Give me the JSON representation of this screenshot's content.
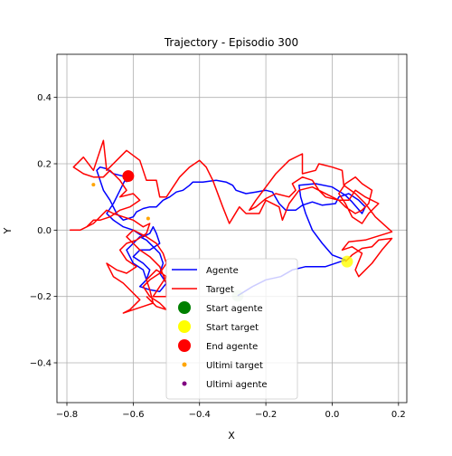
{
  "chart_data": {
    "type": "line",
    "title": "Trajectory - Episodio 300",
    "xlabel": "X",
    "ylabel": "Y",
    "xlim": [
      -0.83,
      0.225
    ],
    "ylim": [
      -0.52,
      0.53
    ],
    "xticks": [
      -0.8,
      -0.6,
      -0.4,
      -0.2,
      0.0,
      0.2
    ],
    "xtick_labels": [
      "−0.8",
      "−0.6",
      "−0.4",
      "−0.2",
      "0.0",
      "0.2"
    ],
    "yticks": [
      -0.4,
      -0.2,
      0.0,
      0.2,
      0.4
    ],
    "ytick_labels": [
      "−0.4",
      "−0.2",
      "0.0",
      "0.2",
      "0.4"
    ],
    "grid": true,
    "legend_position": "lower-center",
    "series": [
      {
        "name": "Agente",
        "color": "#0000ff",
        "points": [
          [
            -0.285,
            -0.198
          ],
          [
            -0.24,
            -0.17
          ],
          [
            -0.2,
            -0.15
          ],
          [
            -0.155,
            -0.14
          ],
          [
            -0.12,
            -0.12
          ],
          [
            -0.08,
            -0.11
          ],
          [
            -0.02,
            -0.11
          ],
          [
            0.04,
            -0.09
          ],
          [
            0.0,
            -0.075
          ],
          [
            -0.03,
            -0.04
          ],
          [
            -0.06,
            0.0
          ],
          [
            -0.08,
            0.05
          ],
          [
            -0.095,
            0.1
          ],
          [
            -0.1,
            0.135
          ],
          [
            -0.05,
            0.14
          ],
          [
            0.0,
            0.13
          ],
          [
            0.04,
            0.105
          ],
          [
            0.06,
            0.085
          ],
          [
            0.09,
            0.05
          ],
          [
            0.1,
            0.07
          ],
          [
            0.08,
            0.09
          ],
          [
            0.05,
            0.11
          ],
          [
            0.02,
            0.1
          ],
          [
            0.01,
            0.08
          ],
          [
            -0.03,
            0.075
          ],
          [
            -0.06,
            0.085
          ],
          [
            -0.09,
            0.075
          ],
          [
            -0.11,
            0.06
          ],
          [
            -0.14,
            0.06
          ],
          [
            -0.16,
            0.08
          ],
          [
            -0.18,
            0.115
          ],
          [
            -0.2,
            0.12
          ],
          [
            -0.23,
            0.115
          ],
          [
            -0.26,
            0.11
          ],
          [
            -0.29,
            0.12
          ],
          [
            -0.3,
            0.135
          ],
          [
            -0.32,
            0.145
          ],
          [
            -0.35,
            0.15
          ],
          [
            -0.39,
            0.145
          ],
          [
            -0.42,
            0.145
          ],
          [
            -0.43,
            0.135
          ],
          [
            -0.45,
            0.12
          ],
          [
            -0.47,
            0.115
          ],
          [
            -0.49,
            0.1
          ],
          [
            -0.51,
            0.09
          ],
          [
            -0.53,
            0.07
          ],
          [
            -0.55,
            0.07
          ],
          [
            -0.57,
            0.065
          ],
          [
            -0.59,
            0.055
          ],
          [
            -0.6,
            0.04
          ],
          [
            -0.63,
            0.03
          ],
          [
            -0.65,
            0.05
          ],
          [
            -0.67,
            0.09
          ],
          [
            -0.69,
            0.12
          ],
          [
            -0.7,
            0.15
          ],
          [
            -0.71,
            0.18
          ],
          [
            -0.7,
            0.19
          ],
          [
            -0.68,
            0.185
          ],
          [
            -0.66,
            0.17
          ],
          [
            -0.64,
            0.165
          ],
          [
            -0.62,
            0.16
          ],
          [
            -0.64,
            0.12
          ],
          [
            -0.66,
            0.08
          ],
          [
            -0.68,
            0.05
          ],
          [
            -0.66,
            0.03
          ],
          [
            -0.63,
            0.01
          ],
          [
            -0.6,
            0.0
          ],
          [
            -0.57,
            -0.02
          ],
          [
            -0.55,
            -0.01
          ],
          [
            -0.54,
            0.01
          ],
          [
            -0.53,
            -0.01
          ],
          [
            -0.52,
            -0.04
          ],
          [
            -0.55,
            -0.06
          ],
          [
            -0.58,
            -0.06
          ],
          [
            -0.6,
            -0.08
          ],
          [
            -0.57,
            -0.1
          ],
          [
            -0.55,
            -0.12
          ],
          [
            -0.56,
            -0.15
          ],
          [
            -0.58,
            -0.17
          ],
          [
            -0.55,
            -0.18
          ],
          [
            -0.52,
            -0.185
          ],
          [
            -0.5,
            -0.16
          ],
          [
            -0.52,
            -0.13
          ],
          [
            -0.51,
            -0.1
          ],
          [
            -0.52,
            -0.07
          ],
          [
            -0.54,
            -0.05
          ],
          [
            -0.56,
            -0.03
          ],
          [
            -0.58,
            -0.02
          ],
          [
            -0.6,
            -0.04
          ],
          [
            -0.62,
            -0.06
          ],
          [
            -0.6,
            -0.1
          ],
          [
            -0.57,
            -0.12
          ],
          [
            -0.56,
            -0.15
          ]
        ]
      },
      {
        "name": "Target",
        "color": "#ff0000",
        "points": [
          [
            0.04,
            -0.095
          ],
          [
            0.06,
            -0.075
          ],
          [
            0.09,
            -0.055
          ],
          [
            0.12,
            -0.05
          ],
          [
            0.14,
            -0.03
          ],
          [
            0.18,
            -0.025
          ],
          [
            0.15,
            -0.06
          ],
          [
            0.12,
            -0.1
          ],
          [
            0.08,
            -0.14
          ],
          [
            0.07,
            -0.12
          ],
          [
            0.09,
            -0.07
          ],
          [
            0.06,
            -0.05
          ],
          [
            0.03,
            -0.06
          ],
          [
            0.05,
            -0.035
          ],
          [
            0.1,
            -0.03
          ],
          [
            0.18,
            -0.005
          ],
          [
            0.13,
            0.04
          ],
          [
            0.1,
            0.08
          ],
          [
            0.07,
            0.11
          ],
          [
            0.035,
            0.135
          ],
          [
            0.03,
            0.18
          ],
          [
            0.0,
            0.19
          ],
          [
            -0.04,
            0.2
          ],
          [
            -0.05,
            0.18
          ],
          [
            -0.09,
            0.17
          ],
          [
            -0.09,
            0.23
          ],
          [
            -0.13,
            0.21
          ],
          [
            -0.17,
            0.17
          ],
          [
            -0.2,
            0.13
          ],
          [
            -0.23,
            0.09
          ],
          [
            -0.25,
            0.06
          ],
          [
            -0.23,
            0.07
          ],
          [
            -0.2,
            0.095
          ],
          [
            -0.17,
            0.11
          ],
          [
            -0.13,
            0.1
          ],
          [
            -0.11,
            0.12
          ],
          [
            -0.12,
            0.14
          ],
          [
            -0.09,
            0.16
          ],
          [
            -0.06,
            0.15
          ],
          [
            -0.04,
            0.12
          ],
          [
            -0.02,
            0.1
          ],
          [
            0.02,
            0.09
          ],
          [
            0.05,
            0.09
          ],
          [
            0.07,
            0.12
          ],
          [
            0.1,
            0.1
          ],
          [
            0.14,
            0.08
          ],
          [
            0.11,
            0.05
          ],
          [
            0.09,
            0.02
          ],
          [
            0.06,
            0.04
          ],
          [
            0.04,
            0.08
          ],
          [
            0.02,
            0.11
          ],
          [
            0.04,
            0.14
          ],
          [
            0.07,
            0.16
          ],
          [
            0.09,
            0.14
          ],
          [
            0.12,
            0.12
          ],
          [
            0.11,
            0.08
          ],
          [
            0.09,
            0.06
          ],
          [
            0.07,
            0.05
          ],
          [
            0.04,
            0.07
          ],
          [
            0.02,
            0.09
          ],
          [
            0.0,
            0.1
          ],
          [
            -0.06,
            0.13
          ],
          [
            -0.1,
            0.12
          ],
          [
            -0.13,
            0.08
          ],
          [
            -0.15,
            0.03
          ],
          [
            -0.16,
            0.07
          ],
          [
            -0.2,
            0.09
          ],
          [
            -0.22,
            0.05
          ],
          [
            -0.26,
            0.05
          ],
          [
            -0.28,
            0.07
          ],
          [
            -0.31,
            0.02
          ],
          [
            -0.33,
            0.07
          ],
          [
            -0.36,
            0.15
          ],
          [
            -0.38,
            0.19
          ],
          [
            -0.4,
            0.21
          ],
          [
            -0.43,
            0.19
          ],
          [
            -0.46,
            0.16
          ],
          [
            -0.48,
            0.13
          ],
          [
            -0.5,
            0.1
          ],
          [
            -0.52,
            0.1
          ],
          [
            -0.53,
            0.15
          ],
          [
            -0.56,
            0.15
          ],
          [
            -0.58,
            0.21
          ],
          [
            -0.62,
            0.24
          ],
          [
            -0.65,
            0.21
          ],
          [
            -0.68,
            0.18
          ],
          [
            -0.69,
            0.27
          ],
          [
            -0.7,
            0.24
          ],
          [
            -0.72,
            0.18
          ],
          [
            -0.75,
            0.22
          ],
          [
            -0.78,
            0.19
          ],
          [
            -0.75,
            0.17
          ],
          [
            -0.72,
            0.16
          ],
          [
            -0.69,
            0.16
          ],
          [
            -0.67,
            0.18
          ],
          [
            -0.64,
            0.15
          ],
          [
            -0.62,
            0.12
          ],
          [
            -0.64,
            0.1
          ],
          [
            -0.6,
            0.11
          ],
          [
            -0.58,
            0.09
          ],
          [
            -0.61,
            0.07
          ],
          [
            -0.64,
            0.06
          ],
          [
            -0.67,
            0.04
          ],
          [
            -0.7,
            0.03
          ],
          [
            -0.72,
            0.03
          ],
          [
            -0.74,
            0.01
          ],
          [
            -0.76,
            0.0
          ],
          [
            -0.79,
            0.0
          ],
          [
            -0.76,
            0.0
          ],
          [
            -0.72,
            0.02
          ],
          [
            -0.7,
            0.04
          ],
          [
            -0.68,
            0.06
          ],
          [
            -0.66,
            0.05
          ],
          [
            -0.63,
            0.04
          ],
          [
            -0.6,
            0.03
          ],
          [
            -0.57,
            0.01
          ],
          [
            -0.55,
            0.02
          ],
          [
            -0.56,
            -0.01
          ],
          [
            -0.59,
            -0.03
          ],
          [
            -0.62,
            -0.04
          ],
          [
            -0.64,
            -0.06
          ],
          [
            -0.62,
            -0.09
          ],
          [
            -0.59,
            -0.11
          ],
          [
            -0.62,
            -0.13
          ],
          [
            -0.65,
            -0.12
          ],
          [
            -0.68,
            -0.1
          ],
          [
            -0.66,
            -0.14
          ],
          [
            -0.63,
            -0.16
          ],
          [
            -0.6,
            -0.19
          ],
          [
            -0.58,
            -0.21
          ],
          [
            -0.61,
            -0.24
          ],
          [
            -0.63,
            -0.25
          ],
          [
            -0.6,
            -0.24
          ],
          [
            -0.57,
            -0.23
          ],
          [
            -0.54,
            -0.22
          ],
          [
            -0.55,
            -0.18
          ],
          [
            -0.56,
            -0.15
          ],
          [
            -0.53,
            -0.12
          ],
          [
            -0.5,
            -0.14
          ],
          [
            -0.52,
            -0.17
          ],
          [
            -0.54,
            -0.2
          ],
          [
            -0.5,
            -0.2
          ],
          [
            -0.5,
            -0.16
          ],
          [
            -0.52,
            -0.11
          ],
          [
            -0.55,
            -0.08
          ],
          [
            -0.58,
            -0.06
          ],
          [
            -0.6,
            -0.04
          ],
          [
            -0.62,
            -0.02
          ],
          [
            -0.6,
            0.0
          ],
          [
            -0.56,
            -0.02
          ],
          [
            -0.53,
            -0.04
          ],
          [
            -0.51,
            -0.07
          ],
          [
            -0.5,
            -0.1
          ],
          [
            -0.52,
            -0.13
          ],
          [
            -0.55,
            -0.15
          ],
          [
            -0.57,
            -0.17
          ],
          [
            -0.55,
            -0.2
          ],
          [
            -0.52,
            -0.22
          ],
          [
            -0.5,
            -0.24
          ],
          [
            -0.53,
            -0.23
          ],
          [
            -0.56,
            -0.2
          ]
        ]
      }
    ],
    "markers": [
      {
        "name": "Start agente",
        "x": -0.285,
        "y": -0.198,
        "color": "#008000",
        "size": "large",
        "opacity": 0.2
      },
      {
        "name": "Start target",
        "x": 0.045,
        "y": -0.095,
        "color": "#ffff00",
        "size": "large",
        "opacity": 0.8
      },
      {
        "name": "End agente",
        "x": -0.615,
        "y": 0.163,
        "color": "#ff0000",
        "size": "large",
        "opacity": 1.0
      }
    ],
    "scatter_series": [
      {
        "name": "Ultimi target",
        "color": "#ffa500",
        "points": [
          [
            -0.72,
            0.137
          ],
          [
            -0.555,
            0.035
          ]
        ]
      },
      {
        "name": "Ultimi agente",
        "color": "#800080",
        "points": [
          [
            -0.62,
            0.15
          ]
        ]
      }
    ],
    "legend": [
      {
        "label": "Agente",
        "kind": "line",
        "color": "#0000ff"
      },
      {
        "label": "Target",
        "kind": "line",
        "color": "#ff0000"
      },
      {
        "label": "Start agente",
        "kind": "big-dot",
        "color": "#008000"
      },
      {
        "label": "Start target",
        "kind": "big-dot",
        "color": "#ffff00"
      },
      {
        "label": "End agente",
        "kind": "big-dot",
        "color": "#ff0000"
      },
      {
        "label": "Ultimi target",
        "kind": "small-dot",
        "color": "#ffa500"
      },
      {
        "label": "Ultimi agente",
        "kind": "small-dot",
        "color": "#800080"
      }
    ]
  }
}
